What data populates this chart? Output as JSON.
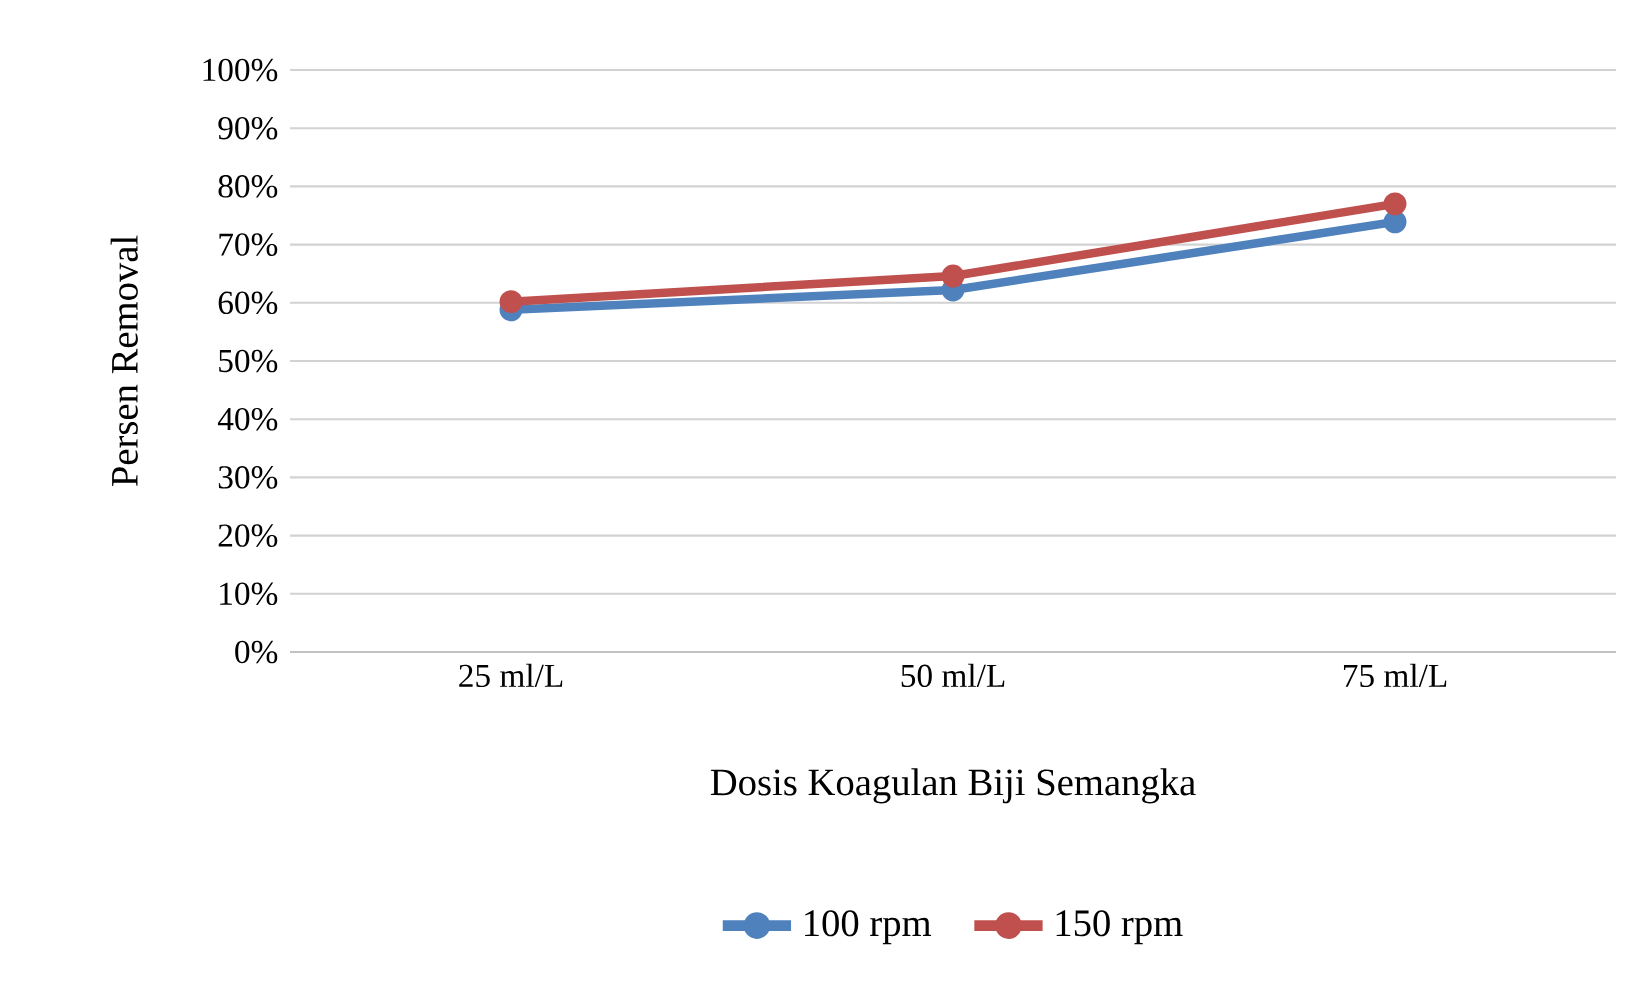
{
  "chart_data": {
    "type": "line",
    "xlabel": "Dosis Koagulan Biji Semangka",
    "ylabel": "Persen Removal",
    "categories": [
      "25 ml/L",
      "50 ml/L",
      "75 ml/L"
    ],
    "series": [
      {
        "name": "100 rpm",
        "color": "#4f81bd",
        "values": [
          58.8,
          62.2,
          73.9
        ]
      },
      {
        "name": "150 rpm",
        "color": "#c0504d",
        "values": [
          60.2,
          64.6,
          77.0
        ]
      }
    ],
    "ylim": [
      0,
      100
    ],
    "yticks": [
      {
        "value": 0,
        "label": "0%"
      },
      {
        "value": 10,
        "label": "10%"
      },
      {
        "value": 20,
        "label": "20%"
      },
      {
        "value": 30,
        "label": "30%"
      },
      {
        "value": 40,
        "label": "40%"
      },
      {
        "value": 50,
        "label": "50%"
      },
      {
        "value": 60,
        "label": "60%"
      },
      {
        "value": 70,
        "label": "70%"
      },
      {
        "value": 80,
        "label": "80%"
      },
      {
        "value": 90,
        "label": "90%"
      },
      {
        "value": 100,
        "label": "100%"
      }
    ],
    "grid": "y",
    "legend": "bottom",
    "marker": "circle",
    "line_style": "solid"
  }
}
